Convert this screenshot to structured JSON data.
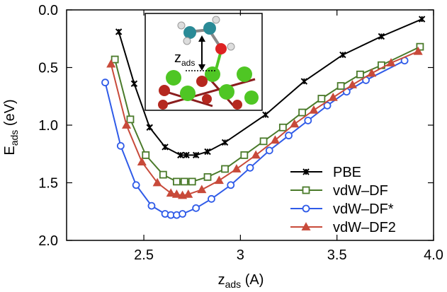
{
  "chart_data": {
    "type": "line",
    "y_label": {
      "main": "E",
      "sub": "ads",
      "rest": " (eV)"
    },
    "x_label": {
      "main": "z",
      "sub": "ads",
      "rest": " (A)"
    },
    "inset_label": {
      "main": "z",
      "sub": "ads"
    },
    "xlim": [
      2.1,
      4.0
    ],
    "xticks": [
      2.5,
      3.0,
      3.5,
      {
        "value": 4.0,
        "label": "4.0"
      }
    ],
    "ylim": [
      0,
      2
    ],
    "y_inverted": true,
    "yticks": [
      {
        "value": 0,
        "label": "0.0"
      },
      0.5,
      {
        "value": 1,
        "label": "1.0"
      },
      1.5,
      {
        "value": 2,
        "label": "2.0"
      }
    ],
    "legend": "lower right",
    "series": [
      {
        "name": "PBE",
        "color": "#000000",
        "marker": "x",
        "x": [
          2.37,
          2.45,
          2.53,
          2.61,
          2.69,
          2.72,
          2.77,
          2.83,
          2.92,
          3.13,
          3.33,
          3.53,
          3.73,
          3.94
        ],
        "values": [
          0.19,
          0.64,
          1.02,
          1.19,
          1.26,
          1.26,
          1.26,
          1.23,
          1.15,
          0.91,
          0.62,
          0.39,
          0.23,
          0.08
        ]
      },
      {
        "name": "vdW–DF",
        "color": "#4a7a2a",
        "marker": "square",
        "x": [
          2.35,
          2.43,
          2.51,
          2.6,
          2.67,
          2.71,
          2.75,
          2.83,
          2.92,
          3.02,
          3.12,
          3.22,
          3.32,
          3.42,
          3.52,
          3.62,
          3.73,
          3.93
        ],
        "values": [
          0.43,
          0.95,
          1.26,
          1.43,
          1.49,
          1.49,
          1.49,
          1.45,
          1.38,
          1.26,
          1.14,
          1.02,
          0.89,
          0.77,
          0.66,
          0.56,
          0.48,
          0.32
        ]
      },
      {
        "name": "vdW–DF*",
        "color": "#2f5be8",
        "marker": "circle",
        "x": [
          2.3,
          2.38,
          2.46,
          2.54,
          2.61,
          2.64,
          2.67,
          2.7,
          2.77,
          2.85,
          2.95,
          3.05,
          3.15,
          3.25,
          3.35,
          3.45,
          3.55,
          3.65,
          3.85
        ],
        "values": [
          0.63,
          1.18,
          1.52,
          1.7,
          1.77,
          1.78,
          1.78,
          1.77,
          1.72,
          1.64,
          1.52,
          1.37,
          1.22,
          1.09,
          0.96,
          0.83,
          0.71,
          0.61,
          0.44
        ]
      },
      {
        "name": "vdW–DF2",
        "color": "#c84a3a",
        "marker": "triangle",
        "x": [
          2.33,
          2.41,
          2.49,
          2.57,
          2.64,
          2.67,
          2.7,
          2.73,
          2.8,
          2.89,
          2.98,
          3.08,
          3.18,
          3.28,
          3.38,
          3.48,
          3.58,
          3.68,
          3.78,
          3.92
        ],
        "values": [
          0.47,
          1.0,
          1.32,
          1.5,
          1.59,
          1.6,
          1.61,
          1.6,
          1.56,
          1.48,
          1.38,
          1.26,
          1.13,
          0.99,
          0.87,
          0.76,
          0.65,
          0.55,
          0.46,
          0.36
        ]
      }
    ]
  }
}
